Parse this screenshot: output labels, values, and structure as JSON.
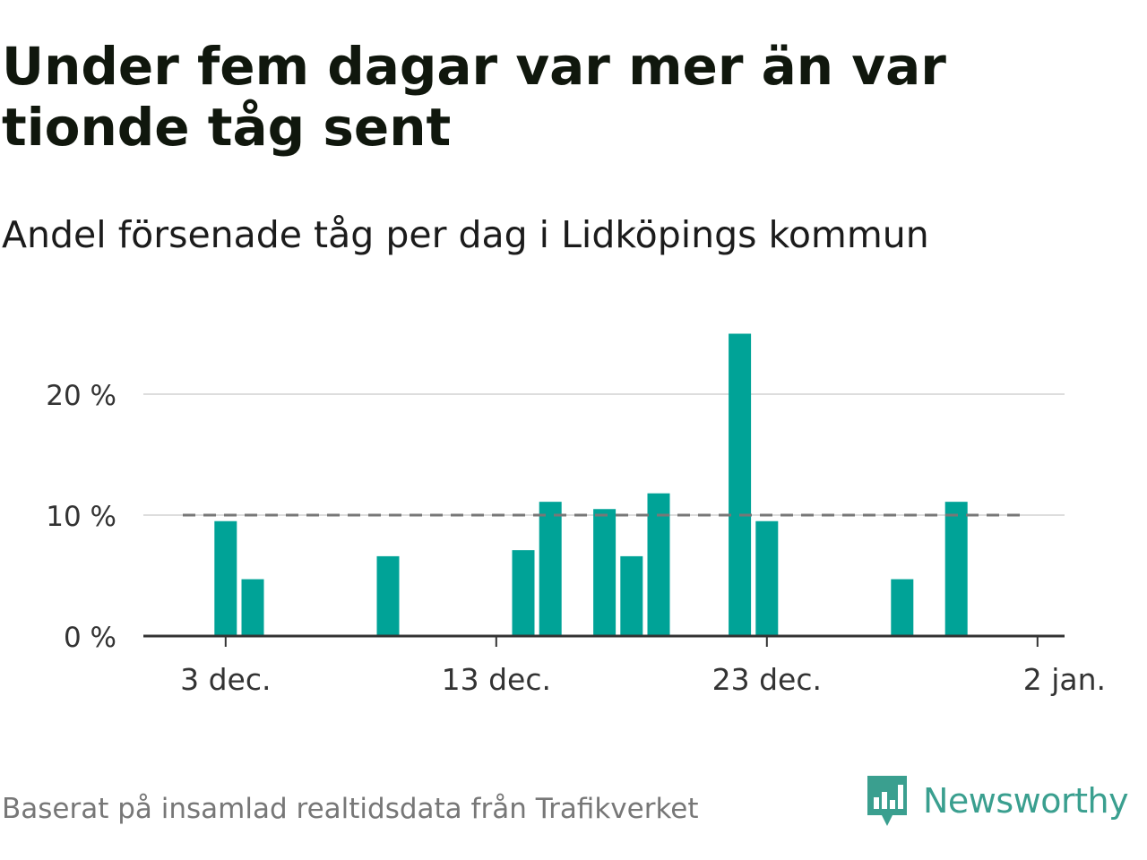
{
  "header": {
    "title": "Under fem dagar var mer än var tionde tåg sent",
    "subtitle": "Andel försenade tåg per dag i Lidköpings kommun"
  },
  "footer": {
    "source": "Baserat på insamlad realtidsdata från Trafikverket",
    "brand": "Newsworthy",
    "brand_icon": "newsworthy-logo-icon"
  },
  "colors": {
    "bar": "#00a397",
    "threshold": "#777777",
    "grid": "#dddddd",
    "axis": "#333333",
    "brand": "#3a9f8f"
  },
  "chart_data": {
    "type": "bar",
    "title": "Under fem dagar var mer än var tionde tåg sent",
    "subtitle": "Andel försenade tåg per dag i Lidköpings kommun",
    "xlabel": "",
    "ylabel": "",
    "x_start": "2023-11-29",
    "x_end": "2024-01-02",
    "x": [
      "2023-12-03",
      "2023-12-04",
      "2023-12-09",
      "2023-12-14",
      "2023-12-15",
      "2023-12-17",
      "2023-12-18",
      "2023-12-19",
      "2023-12-22",
      "2023-12-23",
      "2023-12-28",
      "2023-12-30"
    ],
    "values": [
      9.5,
      4.7,
      6.6,
      7.1,
      11.1,
      10.5,
      6.6,
      11.8,
      25.0,
      9.5,
      4.7,
      11.1
    ],
    "ylim": [
      0,
      25
    ],
    "y_ticks": [
      0,
      10,
      20
    ],
    "y_tick_labels": [
      "0 %",
      "10 %",
      "20 %"
    ],
    "x_ticks": [
      "2023-12-03",
      "2023-12-13",
      "2023-12-23",
      "2024-01-02"
    ],
    "x_tick_labels": [
      "3 dec.",
      "13 dec.",
      "23 dec.",
      "2 jan."
    ],
    "threshold": 10,
    "grid": true,
    "legend": "none"
  }
}
